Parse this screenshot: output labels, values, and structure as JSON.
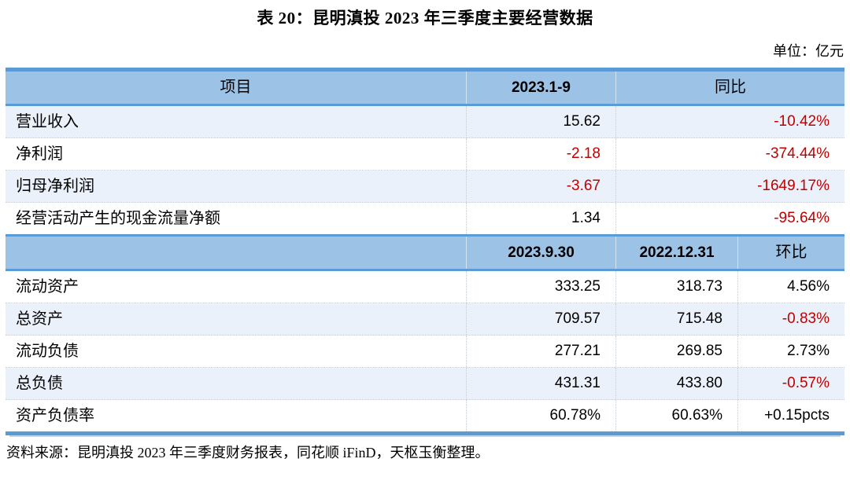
{
  "title": "表 20：昆明滇投 2023 年三季度主要经营数据",
  "unit_label": "单位：亿元",
  "source": "资料来源：昆明滇投 2023 年三季度财务报表，同花顺 iFinD，天枢玉衡整理。",
  "colors": {
    "header_bg": "#9CC3E6",
    "border_blue": "#5B9BD5",
    "alt_row_bg": "#EBF1FA",
    "negative_red": "#C00000",
    "text_black": "#000000"
  },
  "table": {
    "section1": {
      "header": {
        "col1": "项目",
        "col2": "2023.1-9",
        "col3": "同比"
      },
      "rows": [
        {
          "label": "营业收入",
          "cells": [
            {
              "text": "15.62",
              "color": "#000000"
            },
            {
              "text": "-10.42%",
              "color": "#C00000"
            }
          ]
        },
        {
          "label": "净利润",
          "cells": [
            {
              "text": "-2.18",
              "color": "#C00000"
            },
            {
              "text": "-374.44%",
              "color": "#C00000"
            }
          ]
        },
        {
          "label": "归母净利润",
          "cells": [
            {
              "text": "-3.67",
              "color": "#C00000"
            },
            {
              "text": "-1649.17%",
              "color": "#C00000"
            }
          ]
        },
        {
          "label": "经营活动产生的现金流量净额",
          "cells": [
            {
              "text": "1.34",
              "color": "#000000"
            },
            {
              "text": "-95.64%",
              "color": "#C00000"
            }
          ]
        }
      ]
    },
    "section2": {
      "header": {
        "col1": "",
        "col2": "2023.9.30",
        "col3": "2022.12.31",
        "col4": "环比"
      },
      "rows": [
        {
          "label": "流动资产",
          "cells": [
            {
              "text": "333.25",
              "color": "#000000"
            },
            {
              "text": "318.73",
              "color": "#000000"
            },
            {
              "text": "4.56%",
              "color": "#000000"
            }
          ]
        },
        {
          "label": "总资产",
          "cells": [
            {
              "text": "709.57",
              "color": "#000000"
            },
            {
              "text": "715.48",
              "color": "#000000"
            },
            {
              "text": "-0.83%",
              "color": "#C00000"
            }
          ]
        },
        {
          "label": "流动负债",
          "cells": [
            {
              "text": "277.21",
              "color": "#000000"
            },
            {
              "text": "269.85",
              "color": "#000000"
            },
            {
              "text": "2.73%",
              "color": "#000000"
            }
          ]
        },
        {
          "label": "总负债",
          "cells": [
            {
              "text": "431.31",
              "color": "#000000"
            },
            {
              "text": "433.80",
              "color": "#000000"
            },
            {
              "text": "-0.57%",
              "color": "#C00000"
            }
          ]
        },
        {
          "label": "资产负债率",
          "cells": [
            {
              "text": "60.78%",
              "color": "#000000"
            },
            {
              "text": "60.63%",
              "color": "#000000"
            },
            {
              "text": "+0.15pcts",
              "color": "#000000"
            }
          ]
        }
      ]
    }
  }
}
